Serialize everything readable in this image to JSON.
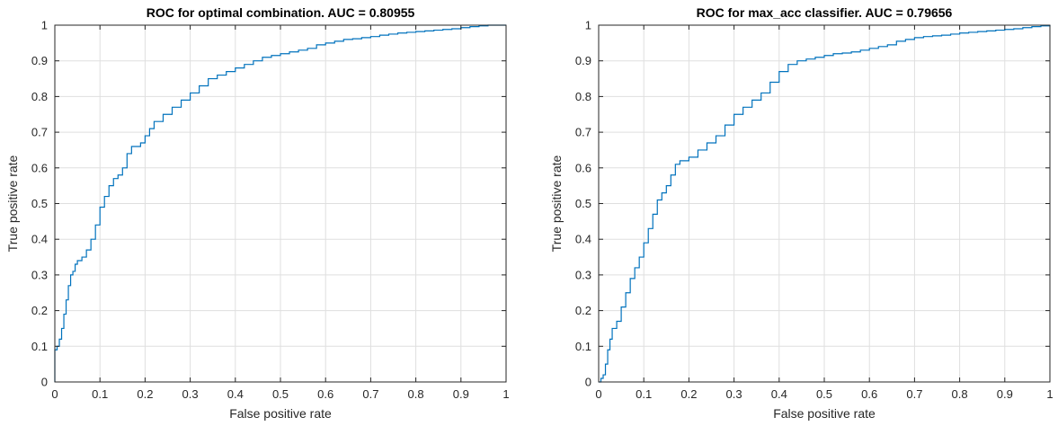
{
  "colors": {
    "line": "#0072bd",
    "grid": "#dfdfdf",
    "axis": "#262626",
    "background": "#ffffff"
  },
  "chart_data": [
    {
      "type": "line",
      "title": "ROC for optimal combination. AUC = 0.80955",
      "xlabel": "False positive rate",
      "ylabel": "True positive rate",
      "xlim": [
        0,
        1
      ],
      "ylim": [
        0,
        1
      ],
      "xticks": [
        0,
        0.1,
        0.2,
        0.3,
        0.4,
        0.5,
        0.6,
        0.7,
        0.8,
        0.9,
        1
      ],
      "yticks": [
        0,
        0.1,
        0.2,
        0.3,
        0.4,
        0.5,
        0.6,
        0.7,
        0.8,
        0.9,
        1
      ],
      "xtick_labels": [
        "0",
        "0.1",
        "0.2",
        "0.3",
        "0.4",
        "0.5",
        "0.6",
        "0.7",
        "0.8",
        "0.9",
        "1"
      ],
      "ytick_labels": [
        "0",
        "0.1",
        "0.2",
        "0.3",
        "0.4",
        "0.5",
        "0.6",
        "0.7",
        "0.8",
        "0.9",
        "1"
      ],
      "grid": true,
      "step": true,
      "x": [
        0,
        0,
        0.005,
        0.01,
        0.015,
        0.02,
        0.025,
        0.03,
        0.035,
        0.04,
        0.045,
        0.05,
        0.055,
        0.06,
        0.07,
        0.08,
        0.09,
        0.1,
        0.11,
        0.12,
        0.13,
        0.14,
        0.15,
        0.16,
        0.17,
        0.18,
        0.19,
        0.2,
        0.21,
        0.22,
        0.24,
        0.26,
        0.28,
        0.3,
        0.32,
        0.34,
        0.36,
        0.38,
        0.4,
        0.42,
        0.44,
        0.46,
        0.48,
        0.5,
        0.52,
        0.54,
        0.56,
        0.58,
        0.6,
        0.62,
        0.64,
        0.66,
        0.68,
        0.7,
        0.72,
        0.74,
        0.76,
        0.78,
        0.8,
        0.82,
        0.84,
        0.86,
        0.88,
        0.9,
        0.92,
        0.94,
        0.96,
        0.98,
        1
      ],
      "y": [
        0,
        0.09,
        0.1,
        0.12,
        0.15,
        0.19,
        0.23,
        0.27,
        0.3,
        0.31,
        0.33,
        0.34,
        0.34,
        0.35,
        0.37,
        0.4,
        0.44,
        0.49,
        0.52,
        0.55,
        0.57,
        0.58,
        0.6,
        0.64,
        0.66,
        0.66,
        0.67,
        0.69,
        0.71,
        0.73,
        0.75,
        0.77,
        0.79,
        0.81,
        0.83,
        0.85,
        0.86,
        0.87,
        0.88,
        0.89,
        0.9,
        0.91,
        0.915,
        0.92,
        0.925,
        0.93,
        0.935,
        0.945,
        0.95,
        0.955,
        0.96,
        0.962,
        0.965,
        0.968,
        0.972,
        0.975,
        0.978,
        0.98,
        0.982,
        0.984,
        0.986,
        0.988,
        0.99,
        0.993,
        0.996,
        0.998,
        1,
        1,
        1
      ]
    },
    {
      "type": "line",
      "title": "ROC for max_acc classifier. AUC = 0.79656",
      "xlabel": "False positive rate",
      "ylabel": "True positive rate",
      "xlim": [
        0,
        1
      ],
      "ylim": [
        0,
        1
      ],
      "xticks": [
        0,
        0.1,
        0.2,
        0.3,
        0.4,
        0.5,
        0.6,
        0.7,
        0.8,
        0.9,
        1
      ],
      "yticks": [
        0,
        0.1,
        0.2,
        0.3,
        0.4,
        0.5,
        0.6,
        0.7,
        0.8,
        0.9,
        1
      ],
      "xtick_labels": [
        "0",
        "0.1",
        "0.2",
        "0.3",
        "0.4",
        "0.5",
        "0.6",
        "0.7",
        "0.8",
        "0.9",
        "1"
      ],
      "ytick_labels": [
        "0",
        "0.1",
        "0.2",
        "0.3",
        "0.4",
        "0.5",
        "0.6",
        "0.7",
        "0.8",
        "0.9",
        "1"
      ],
      "grid": true,
      "step": true,
      "x": [
        0,
        0.005,
        0.01,
        0.015,
        0.02,
        0.025,
        0.03,
        0.04,
        0.05,
        0.06,
        0.07,
        0.08,
        0.09,
        0.1,
        0.11,
        0.12,
        0.13,
        0.14,
        0.15,
        0.16,
        0.17,
        0.18,
        0.19,
        0.2,
        0.22,
        0.24,
        0.26,
        0.28,
        0.3,
        0.32,
        0.34,
        0.36,
        0.38,
        0.4,
        0.42,
        0.44,
        0.46,
        0.48,
        0.5,
        0.52,
        0.54,
        0.56,
        0.58,
        0.6,
        0.62,
        0.64,
        0.66,
        0.68,
        0.7,
        0.72,
        0.74,
        0.76,
        0.78,
        0.8,
        0.82,
        0.84,
        0.86,
        0.88,
        0.9,
        0.92,
        0.94,
        0.96,
        0.98,
        1
      ],
      "y": [
        0,
        0.01,
        0.02,
        0.05,
        0.09,
        0.12,
        0.15,
        0.17,
        0.21,
        0.25,
        0.29,
        0.32,
        0.35,
        0.39,
        0.43,
        0.47,
        0.51,
        0.53,
        0.55,
        0.58,
        0.61,
        0.62,
        0.62,
        0.63,
        0.65,
        0.67,
        0.69,
        0.72,
        0.75,
        0.77,
        0.79,
        0.81,
        0.84,
        0.87,
        0.89,
        0.9,
        0.905,
        0.91,
        0.915,
        0.92,
        0.922,
        0.925,
        0.93,
        0.935,
        0.94,
        0.945,
        0.955,
        0.96,
        0.965,
        0.968,
        0.97,
        0.972,
        0.975,
        0.978,
        0.98,
        0.982,
        0.984,
        0.986,
        0.988,
        0.99,
        0.993,
        0.996,
        0.998,
        1
      ]
    }
  ]
}
